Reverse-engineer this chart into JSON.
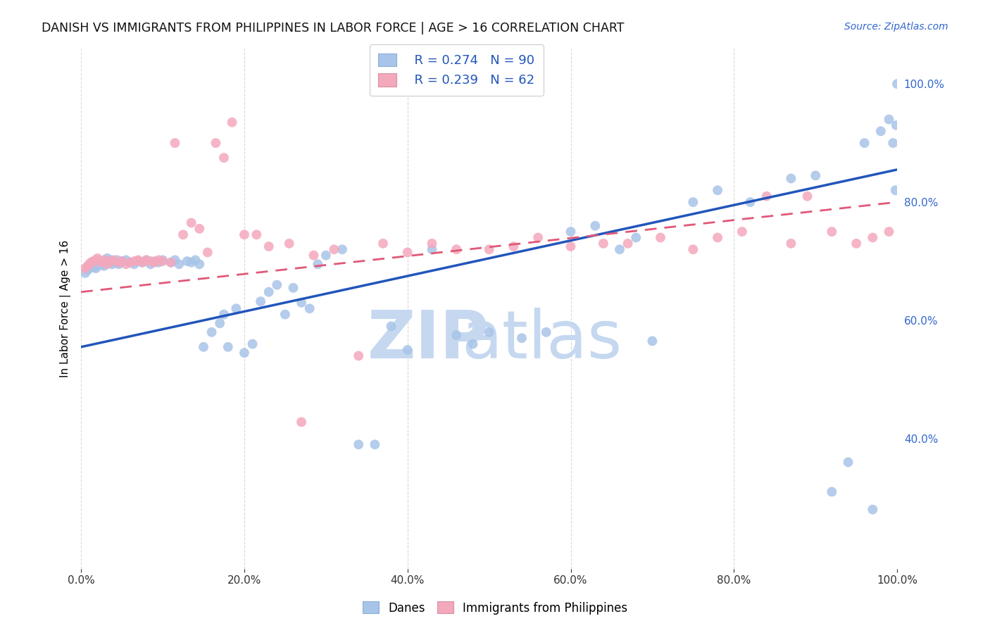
{
  "title": "DANISH VS IMMIGRANTS FROM PHILIPPINES IN LABOR FORCE | AGE > 16 CORRELATION CHART",
  "source": "Source: ZipAtlas.com",
  "ylabel": "In Labor Force | Age > 16",
  "x_min": 0.0,
  "x_max": 1.0,
  "y_min": 0.18,
  "y_max": 1.06,
  "danes_R": 0.274,
  "danes_N": 90,
  "phil_R": 0.239,
  "phil_N": 62,
  "danes_color": "#a8c4e8",
  "phil_color": "#f4a8bc",
  "danes_line_color": "#2255bb",
  "phil_line_color": "#e05878",
  "danes_line_start_y": 0.555,
  "danes_line_end_y": 0.855,
  "phil_line_start_y": 0.648,
  "phil_line_end_y": 0.8,
  "danes_scatter_x": [
    0.005,
    0.008,
    0.01,
    0.012,
    0.014,
    0.015,
    0.016,
    0.018,
    0.02,
    0.022,
    0.024,
    0.025,
    0.026,
    0.028,
    0.03,
    0.032,
    0.034,
    0.036,
    0.038,
    0.04,
    0.042,
    0.044,
    0.046,
    0.048,
    0.05,
    0.055,
    0.06,
    0.065,
    0.07,
    0.075,
    0.08,
    0.085,
    0.09,
    0.095,
    0.1,
    0.11,
    0.115,
    0.12,
    0.13,
    0.135,
    0.14,
    0.145,
    0.15,
    0.16,
    0.17,
    0.175,
    0.18,
    0.19,
    0.2,
    0.21,
    0.22,
    0.23,
    0.24,
    0.25,
    0.26,
    0.27,
    0.28,
    0.29,
    0.3,
    0.32,
    0.34,
    0.36,
    0.38,
    0.4,
    0.43,
    0.46,
    0.48,
    0.5,
    0.54,
    0.57,
    0.6,
    0.63,
    0.66,
    0.68,
    0.7,
    0.75,
    0.78,
    0.82,
    0.87,
    0.9,
    0.92,
    0.94,
    0.96,
    0.97,
    0.98,
    0.99,
    0.995,
    0.998,
    0.999,
    1.0
  ],
  "danes_scatter_y": [
    0.68,
    0.685,
    0.688,
    0.69,
    0.692,
    0.695,
    0.69,
    0.688,
    0.692,
    0.696,
    0.7,
    0.698,
    0.695,
    0.692,
    0.7,
    0.705,
    0.698,
    0.702,
    0.695,
    0.7,
    0.698,
    0.702,
    0.695,
    0.698,
    0.7,
    0.702,
    0.698,
    0.695,
    0.7,
    0.698,
    0.702,
    0.695,
    0.7,
    0.698,
    0.702,
    0.698,
    0.702,
    0.695,
    0.7,
    0.698,
    0.702,
    0.695,
    0.555,
    0.58,
    0.595,
    0.61,
    0.555,
    0.62,
    0.545,
    0.56,
    0.632,
    0.648,
    0.66,
    0.61,
    0.655,
    0.63,
    0.62,
    0.695,
    0.71,
    0.72,
    0.39,
    0.39,
    0.59,
    0.55,
    0.72,
    0.575,
    0.56,
    0.58,
    0.57,
    0.58,
    0.75,
    0.76,
    0.72,
    0.74,
    0.565,
    0.8,
    0.82,
    0.8,
    0.84,
    0.845,
    0.31,
    0.36,
    0.9,
    0.28,
    0.92,
    0.94,
    0.9,
    0.82,
    0.93,
    1.0
  ],
  "phil_scatter_x": [
    0.005,
    0.008,
    0.01,
    0.012,
    0.015,
    0.018,
    0.02,
    0.024,
    0.028,
    0.032,
    0.036,
    0.04,
    0.045,
    0.05,
    0.055,
    0.06,
    0.065,
    0.07,
    0.075,
    0.08,
    0.085,
    0.09,
    0.095,
    0.1,
    0.11,
    0.115,
    0.125,
    0.135,
    0.145,
    0.155,
    0.165,
    0.175,
    0.185,
    0.2,
    0.215,
    0.23,
    0.255,
    0.27,
    0.285,
    0.31,
    0.34,
    0.37,
    0.4,
    0.43,
    0.46,
    0.5,
    0.53,
    0.56,
    0.6,
    0.64,
    0.67,
    0.71,
    0.75,
    0.78,
    0.81,
    0.84,
    0.87,
    0.89,
    0.92,
    0.95,
    0.97,
    0.99
  ],
  "phil_scatter_y": [
    0.688,
    0.692,
    0.695,
    0.698,
    0.7,
    0.702,
    0.705,
    0.698,
    0.702,
    0.695,
    0.7,
    0.702,
    0.698,
    0.7,
    0.695,
    0.698,
    0.7,
    0.702,
    0.698,
    0.702,
    0.7,
    0.698,
    0.702,
    0.7,
    0.698,
    0.9,
    0.745,
    0.765,
    0.755,
    0.715,
    0.9,
    0.875,
    0.935,
    0.745,
    0.745,
    0.725,
    0.73,
    0.428,
    0.71,
    0.72,
    0.54,
    0.73,
    0.715,
    0.73,
    0.72,
    0.72,
    0.725,
    0.74,
    0.725,
    0.73,
    0.73,
    0.74,
    0.72,
    0.74,
    0.75,
    0.81,
    0.73,
    0.81,
    0.75,
    0.73,
    0.74,
    0.75
  ],
  "x_ticks": [
    0.0,
    0.2,
    0.4,
    0.6,
    0.8,
    1.0
  ],
  "y_ticks_right": [
    0.4,
    0.6,
    0.8,
    1.0
  ],
  "grid_color": "#d8d8d8",
  "background_color": "#ffffff"
}
